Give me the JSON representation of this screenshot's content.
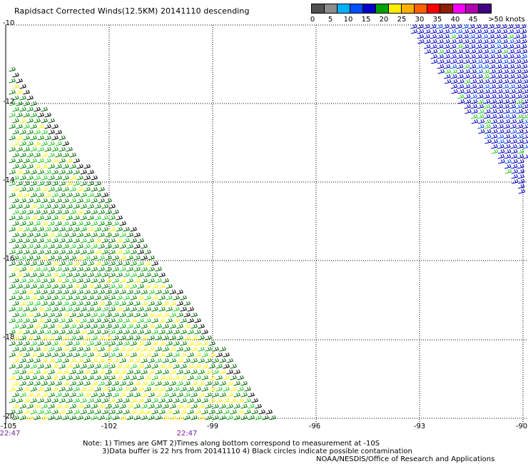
{
  "title": "Rapidsact Corrected Winds(12.5KM) 20141110 descending",
  "legend": {
    "colors": [
      "#505050",
      "#8c8c8c",
      "#00b0ff",
      "#0050ff",
      "#0000c8",
      "#00a000",
      "#ffee00",
      "#ffb000",
      "#ff6000",
      "#ff0000",
      "#8a2000",
      "#ff00ff",
      "#b000b0",
      "#400080"
    ],
    "labels": [
      "0",
      "5",
      "10",
      "15",
      "20",
      "25",
      "30",
      "35",
      "40",
      "45",
      ">50 knots"
    ]
  },
  "axes": {
    "lat_labels": [
      "-10",
      "-12",
      "-14",
      "-16",
      "-18",
      "-20"
    ],
    "lon_labels": [
      "-105",
      "-102",
      "-99",
      "-96",
      "-93",
      "-90"
    ],
    "time_labels": [
      "22:47",
      "22:47"
    ]
  },
  "notes": {
    "line1": "Note: 1) Times are GMT 2)Times along bottom correspond to measurement at -10S",
    "line2": "3)Data buffer is 22 hrs from 20141110 4) Black circles indicate possible contamination",
    "line3": "NOAA/NESDIS/Office of Research and Applications"
  }
}
